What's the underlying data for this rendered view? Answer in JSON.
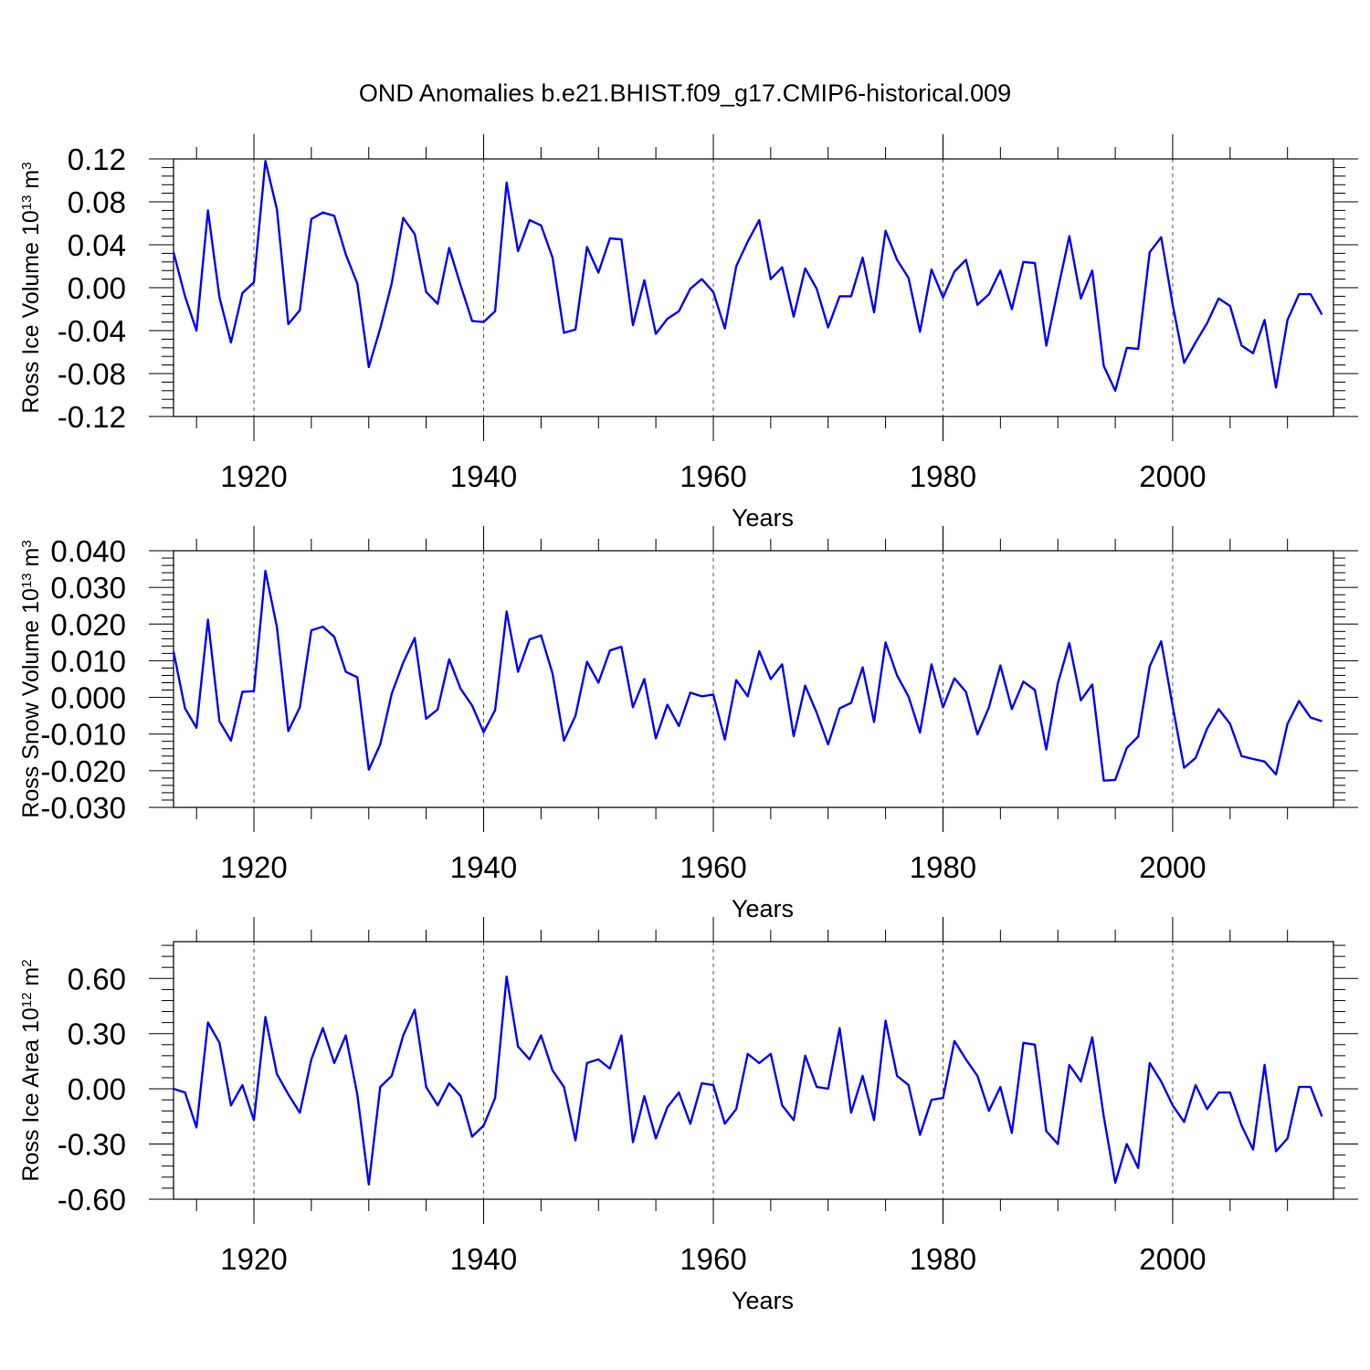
{
  "title": "OND Anomalies b.e21.BHIST.f09_g17.CMIP6-historical.009",
  "series_color": "#0000ff",
  "chart_data": [
    {
      "type": "line",
      "xlabel": "Years",
      "ylabel": {
        "text": "Ross Ice Volume 10",
        "exp": "13",
        "unit": " m",
        "unit_exp": "3"
      },
      "xlim": [
        1913,
        2014
      ],
      "ylim": [
        -0.12,
        0.12
      ],
      "xticks": [
        "1920",
        "1940",
        "1960",
        "1980",
        "2000"
      ],
      "yticks": [
        "-0.12",
        "-0.08",
        "-0.04",
        "0.00",
        "0.04",
        "0.08",
        "0.12"
      ],
      "x_start": 1913,
      "values": [
        0.033,
        -0.008,
        -0.04,
        0.072,
        -0.009,
        -0.051,
        -0.005,
        0.005,
        0.118,
        0.073,
        -0.034,
        -0.021,
        0.064,
        0.07,
        0.067,
        0.031,
        0.004,
        -0.074,
        -0.038,
        0.004,
        0.065,
        0.05,
        -0.004,
        -0.015,
        0.037,
        0.002,
        -0.031,
        -0.032,
        -0.022,
        0.098,
        0.034,
        0.063,
        0.058,
        0.028,
        -0.042,
        -0.039,
        0.038,
        0.014,
        0.046,
        0.045,
        -0.035,
        0.007,
        -0.043,
        -0.029,
        -0.022,
        -0.001,
        0.008,
        -0.004,
        -0.038,
        0.02,
        0.043,
        0.063,
        0.008,
        0.019,
        -0.027,
        0.018,
        -0.001,
        -0.037,
        -0.008,
        -0.008,
        0.028,
        -0.023,
        0.053,
        0.026,
        0.009,
        -0.041,
        0.017,
        -0.009,
        0.015,
        0.026,
        -0.016,
        -0.006,
        0.016,
        -0.02,
        0.024,
        0.023,
        -0.054,
        -0.002,
        0.048,
        -0.01,
        0.016,
        -0.073,
        -0.096,
        -0.056,
        -0.057,
        0.033,
        0.047,
        -0.016,
        -0.07,
        -0.051,
        -0.033,
        -0.01,
        -0.017,
        -0.054,
        -0.061,
        -0.03,
        -0.093,
        -0.03,
        -0.006,
        -0.006,
        -0.025
      ]
    },
    {
      "type": "line",
      "xlabel": "Years",
      "ylabel": {
        "text": "Ross Snow Volume 10",
        "exp": "13",
        "unit": " m",
        "unit_exp": "3"
      },
      "xlim": [
        1913,
        2014
      ],
      "ylim": [
        -0.03,
        0.04
      ],
      "xticks": [
        "1920",
        "1940",
        "1960",
        "1980",
        "2000"
      ],
      "yticks": [
        "-0.030",
        "-0.020",
        "-0.010",
        "0.000",
        "0.010",
        "0.020",
        "0.030",
        "0.040"
      ],
      "x_start": 1913,
      "values": [
        0.0125,
        -0.003,
        -0.0083,
        0.0212,
        -0.0065,
        -0.0118,
        0.0015,
        0.0017,
        0.0345,
        0.0192,
        -0.0092,
        -0.0027,
        0.0183,
        0.0193,
        0.0165,
        0.007,
        0.0055,
        -0.0197,
        -0.0128,
        0.001,
        0.0095,
        0.0162,
        -0.0058,
        -0.0033,
        0.0104,
        0.0023,
        -0.0022,
        -0.0095,
        -0.0035,
        0.0234,
        0.007,
        0.0158,
        0.0169,
        0.0065,
        -0.0118,
        -0.005,
        0.0097,
        0.004,
        0.0128,
        0.0138,
        -0.0027,
        0.005,
        -0.0112,
        -0.002,
        -0.0078,
        0.0013,
        0.0003,
        0.0008,
        -0.0115,
        0.0047,
        0.0003,
        0.0126,
        0.005,
        0.009,
        -0.0106,
        0.0032,
        -0.0042,
        -0.0128,
        -0.003,
        -0.0015,
        0.0082,
        -0.0067,
        0.015,
        0.006,
        0.0002,
        -0.0096,
        0.009,
        -0.0027,
        0.0052,
        0.0015,
        -0.0101,
        -0.0027,
        0.0087,
        -0.0032,
        0.0043,
        0.002,
        -0.0142,
        0.0038,
        0.0148,
        -0.0008,
        0.0035,
        -0.0227,
        -0.0225,
        -0.0138,
        -0.0107,
        0.0085,
        0.0153,
        -0.0025,
        -0.0192,
        -0.0165,
        -0.0085,
        -0.0032,
        -0.0072,
        -0.016,
        -0.0168,
        -0.0175,
        -0.021,
        -0.0072,
        -0.001,
        -0.0055,
        -0.0065
      ]
    },
    {
      "type": "line",
      "xlabel": "Years",
      "ylabel": {
        "text": "Ross Ice Area 10",
        "exp": "12",
        "unit": " m",
        "unit_exp": "2"
      },
      "xlim": [
        1913,
        2014
      ],
      "ylim": [
        -0.6,
        0.8
      ],
      "xticks": [
        "1920",
        "1940",
        "1960",
        "1980",
        "2000"
      ],
      "yticks": [
        "-0.60",
        "-0.30",
        "0.00",
        "0.30",
        "0.60"
      ],
      "x_start": 1913,
      "values": [
        0.0,
        -0.02,
        -0.21,
        0.36,
        0.25,
        -0.09,
        0.02,
        -0.17,
        0.39,
        0.08,
        -0.03,
        -0.13,
        0.16,
        0.33,
        0.14,
        0.29,
        -0.03,
        -0.52,
        0.01,
        0.07,
        0.29,
        0.43,
        0.01,
        -0.09,
        0.03,
        -0.04,
        -0.26,
        -0.2,
        -0.05,
        0.61,
        0.23,
        0.16,
        0.29,
        0.1,
        0.01,
        -0.28,
        0.14,
        0.16,
        0.11,
        0.29,
        -0.29,
        -0.04,
        -0.27,
        -0.1,
        -0.02,
        -0.19,
        0.03,
        0.02,
        -0.19,
        -0.11,
        0.19,
        0.14,
        0.19,
        -0.09,
        -0.17,
        0.18,
        0.01,
        0.0,
        0.33,
        -0.13,
        0.07,
        -0.17,
        0.37,
        0.07,
        0.02,
        -0.25,
        -0.06,
        -0.05,
        0.26,
        0.16,
        0.07,
        -0.12,
        0.01,
        -0.24,
        0.25,
        0.24,
        -0.23,
        -0.3,
        0.13,
        0.04,
        0.28,
        -0.15,
        -0.51,
        -0.3,
        -0.43,
        0.14,
        0.04,
        -0.09,
        -0.18,
        0.02,
        -0.11,
        -0.02,
        -0.02,
        -0.2,
        -0.33,
        0.13,
        -0.34,
        -0.27,
        0.01,
        0.01,
        -0.15
      ]
    }
  ]
}
